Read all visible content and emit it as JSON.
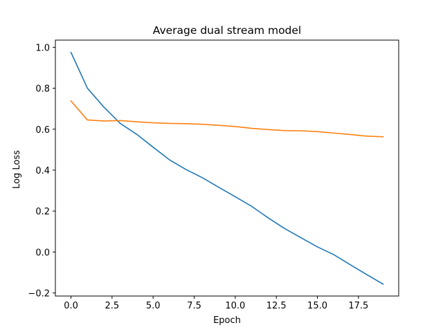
{
  "chart_data": {
    "type": "line",
    "title": "Average dual stream model",
    "xlabel": "Epoch",
    "ylabel": "Log Loss",
    "xlim": [
      -0.95,
      19.95
    ],
    "ylim": [
      -0.215,
      1.035
    ],
    "grid": false,
    "legend": "none",
    "x_ticks": [
      0,
      2.5,
      5,
      7.5,
      10,
      12.5,
      15,
      17.5
    ],
    "x_tick_labels": [
      "0.0",
      "2.5",
      "5.0",
      "7.5",
      "10.0",
      "12.5",
      "15.0",
      "17.5"
    ],
    "y_ticks": [
      -0.2,
      0,
      0.2,
      0.4,
      0.6,
      0.8,
      1.0
    ],
    "y_tick_labels": [
      "−0.2",
      "0.0",
      "0.2",
      "0.4",
      "0.6",
      "0.8",
      "1.0"
    ],
    "x": [
      0,
      1,
      2,
      3,
      4,
      5,
      6,
      7,
      8,
      9,
      10,
      11,
      12,
      13,
      14,
      15,
      16,
      17,
      18,
      19
    ],
    "series": [
      {
        "color": "#1f77b4",
        "values": [
          0.975,
          0.8,
          0.708,
          0.628,
          0.575,
          0.512,
          0.45,
          0.403,
          0.363,
          0.316,
          0.27,
          0.223,
          0.167,
          0.115,
          0.07,
          0.025,
          -0.013,
          -0.062,
          -0.11,
          -0.157
        ]
      },
      {
        "color": "#ff7f0e",
        "values": [
          0.738,
          0.645,
          0.64,
          0.642,
          0.636,
          0.631,
          0.628,
          0.627,
          0.624,
          0.619,
          0.613,
          0.604,
          0.598,
          0.593,
          0.592,
          0.588,
          0.581,
          0.574,
          0.566,
          0.563
        ]
      }
    ]
  }
}
